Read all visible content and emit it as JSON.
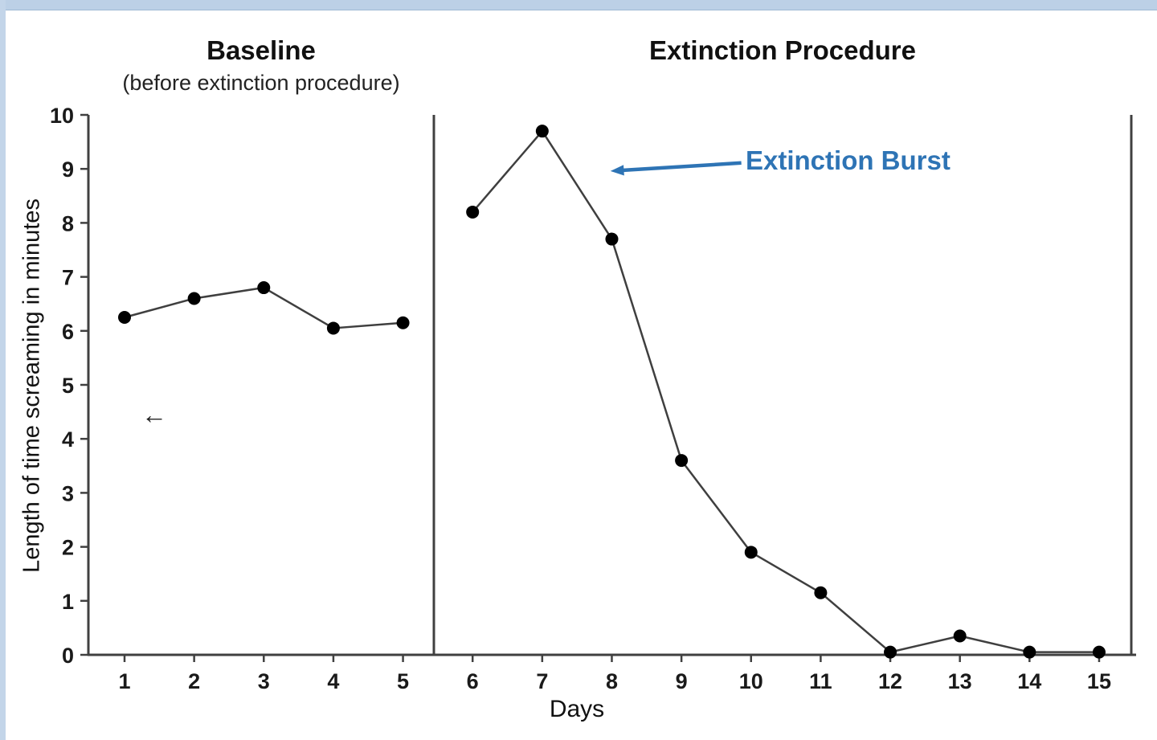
{
  "page": {
    "background": "#ffffff",
    "frame_color": "#bcd0e6"
  },
  "chart_data": {
    "type": "line",
    "title_left": "Baseline",
    "subtitle_left": "(before extinction procedure)",
    "title_right": "Extinction Procedure",
    "xlabel": "Days",
    "ylabel": "Length of time screaming in minutes",
    "ylim": [
      0,
      10
    ],
    "ytick_step": 1,
    "x": [
      1,
      2,
      3,
      4,
      5,
      6,
      7,
      8,
      9,
      10,
      11,
      12,
      13,
      14,
      15
    ],
    "series": [
      {
        "name": "Baseline (before extinction procedure)",
        "x": [
          1,
          2,
          3,
          4,
          5
        ],
        "values": [
          6.25,
          6.6,
          6.8,
          6.05,
          6.15
        ]
      },
      {
        "name": "Extinction Procedure",
        "x": [
          6,
          7,
          8,
          9,
          10,
          11,
          12,
          13,
          14,
          15
        ],
        "values": [
          8.2,
          9.7,
          7.7,
          3.6,
          1.9,
          1.15,
          0.05,
          0.35,
          0.05,
          0.05
        ]
      }
    ],
    "divider_after_x": 5.5,
    "grid": false,
    "legend": "none",
    "line_color": "#3f3f3f",
    "marker_color": "#000000",
    "axis_color": "#404040",
    "annotation": {
      "label": "Extinction Burst",
      "color": "#2e74b5",
      "arrow_from": {
        "x": 9.86,
        "y": 9.11
      },
      "arrow_to": {
        "x": 7.98,
        "y": 8.96
      }
    }
  },
  "cursor": {
    "glyph": "←"
  }
}
